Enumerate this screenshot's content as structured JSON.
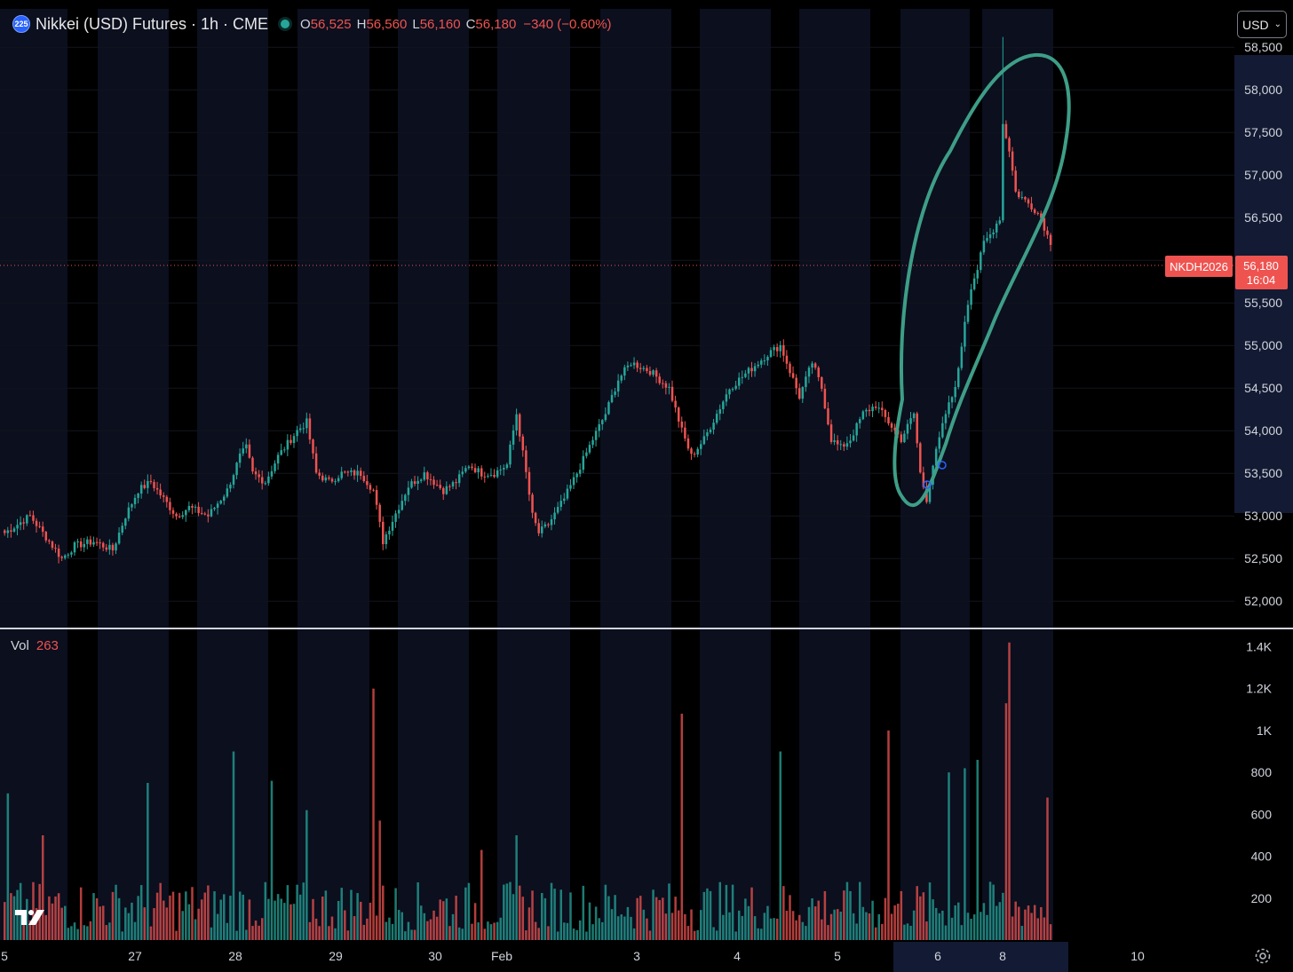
{
  "header": {
    "logo_text": "225",
    "title": "Nikkei (USD) Futures · 1h · CME",
    "ohlc": {
      "o_label": "O",
      "o_value": "56,525",
      "h_label": "H",
      "h_value": "56,560",
      "l_label": "L",
      "l_value": "56,160",
      "c_label": "C",
      "c_value": "56,180",
      "change": "−340 (−0.60%)"
    }
  },
  "currency_button": {
    "label": "USD",
    "chevron": "chevron-down-icon"
  },
  "volume_legend": {
    "label": "Vol",
    "value": "263"
  },
  "colors": {
    "up": "#26a69a",
    "down": "#ef5350",
    "background": "#000000",
    "session_band": "#0b0f1e",
    "annotation": "#3e9e87"
  },
  "chart_data": [
    {
      "type": "candlestick",
      "title": "Nikkei (USD) Futures · 1h · CME",
      "symbol_badge": "NKDH2026",
      "last_price_label": "56,180",
      "countdown_label": "16:04",
      "last_price": 56180,
      "ylim": [
        51700,
        58950
      ],
      "y_ticks": [
        52000,
        52500,
        53000,
        53500,
        54000,
        54500,
        55000,
        55500,
        56000,
        56500,
        57000,
        57500,
        58000,
        58500
      ],
      "y_tick_labels": [
        "52,000",
        "52,500",
        "53,000",
        "53,500",
        "54,000",
        "54,500",
        "55,000",
        "55,500",
        "56,000",
        "56,500",
        "57,000",
        "57,500",
        "58,000",
        "58,500"
      ],
      "x_labels": [
        "5",
        "27",
        "28",
        "29",
        "30",
        "Feb",
        "3",
        "4",
        "5",
        "6",
        "8",
        "10"
      ],
      "keypoints_close": [
        [
          0,
          52800
        ],
        [
          8,
          53000
        ],
        [
          14,
          52700
        ],
        [
          18,
          52500
        ],
        [
          22,
          52650
        ],
        [
          28,
          52700
        ],
        [
          34,
          52600
        ],
        [
          38,
          53000
        ],
        [
          42,
          53300
        ],
        [
          46,
          53400
        ],
        [
          50,
          53200
        ],
        [
          54,
          53000
        ],
        [
          58,
          53100
        ],
        [
          64,
          53000
        ],
        [
          70,
          53300
        ],
        [
          74,
          53700
        ],
        [
          76,
          53800
        ],
        [
          78,
          53500
        ],
        [
          82,
          53400
        ],
        [
          86,
          53700
        ],
        [
          92,
          54000
        ],
        [
          95,
          54100
        ],
        [
          98,
          53500
        ],
        [
          102,
          53400
        ],
        [
          106,
          53500
        ],
        [
          112,
          53500
        ],
        [
          116,
          53300
        ],
        [
          119,
          52700
        ],
        [
          122,
          52950
        ],
        [
          127,
          53350
        ],
        [
          132,
          53500
        ],
        [
          138,
          53300
        ],
        [
          142,
          53400
        ],
        [
          146,
          53600
        ],
        [
          150,
          53500
        ],
        [
          154,
          53500
        ],
        [
          158,
          53600
        ],
        [
          161,
          54200
        ],
        [
          164,
          53500
        ],
        [
          166,
          53000
        ],
        [
          168,
          52800
        ],
        [
          171,
          52900
        ],
        [
          176,
          53200
        ],
        [
          180,
          53500
        ],
        [
          185,
          53900
        ],
        [
          189,
          54200
        ],
        [
          193,
          54600
        ],
        [
          197,
          54800
        ],
        [
          203,
          54700
        ],
        [
          209,
          54500
        ],
        [
          213,
          54000
        ],
        [
          216,
          53700
        ],
        [
          220,
          53900
        ],
        [
          224,
          54200
        ],
        [
          228,
          54500
        ],
        [
          234,
          54700
        ],
        [
          240,
          54900
        ],
        [
          244,
          55000
        ],
        [
          247,
          54700
        ],
        [
          250,
          54400
        ],
        [
          254,
          54800
        ],
        [
          257,
          54500
        ],
        [
          260,
          53900
        ],
        [
          263,
          53800
        ],
        [
          266,
          53900
        ],
        [
          270,
          54200
        ],
        [
          274,
          54300
        ],
        [
          278,
          54100
        ],
        [
          282,
          53900
        ],
        [
          286,
          54200
        ],
        [
          288,
          53500
        ],
        [
          290,
          53200
        ],
        [
          292,
          53600
        ],
        [
          294,
          53900
        ],
        [
          296,
          54200
        ],
        [
          298,
          54400
        ],
        [
          300,
          54700
        ],
        [
          302,
          55300
        ],
        [
          304,
          55700
        ],
        [
          306,
          55900
        ],
        [
          308,
          56200
        ],
        [
          310,
          56300
        ],
        [
          313,
          56500
        ],
        [
          314,
          57600
        ],
        [
          316,
          57300
        ],
        [
          318,
          56800
        ],
        [
          321,
          56700
        ],
        [
          324,
          56600
        ],
        [
          326,
          56500
        ],
        [
          329,
          56180
        ]
      ],
      "volume": {
        "ylim": [
          0,
          1470
        ],
        "y_ticks": [
          200,
          400,
          600,
          800,
          1000,
          1200,
          1400
        ],
        "y_tick_labels": [
          "200",
          "400",
          "600",
          "800",
          "1K",
          "1.2K",
          "1.4K"
        ],
        "spikes": [
          [
            1,
            700
          ],
          [
            12,
            500
          ],
          [
            45,
            750
          ],
          [
            72,
            900
          ],
          [
            84,
            760
          ],
          [
            95,
            620
          ],
          [
            116,
            1200
          ],
          [
            118,
            570
          ],
          [
            150,
            430
          ],
          [
            161,
            500
          ],
          [
            213,
            1080
          ],
          [
            244,
            900
          ],
          [
            278,
            1000
          ],
          [
            297,
            800
          ],
          [
            302,
            820
          ],
          [
            306,
            860
          ],
          [
            315,
            1130
          ],
          [
            316,
            1420
          ],
          [
            328,
            680
          ],
          [
            331,
            610
          ]
        ]
      }
    }
  ]
}
